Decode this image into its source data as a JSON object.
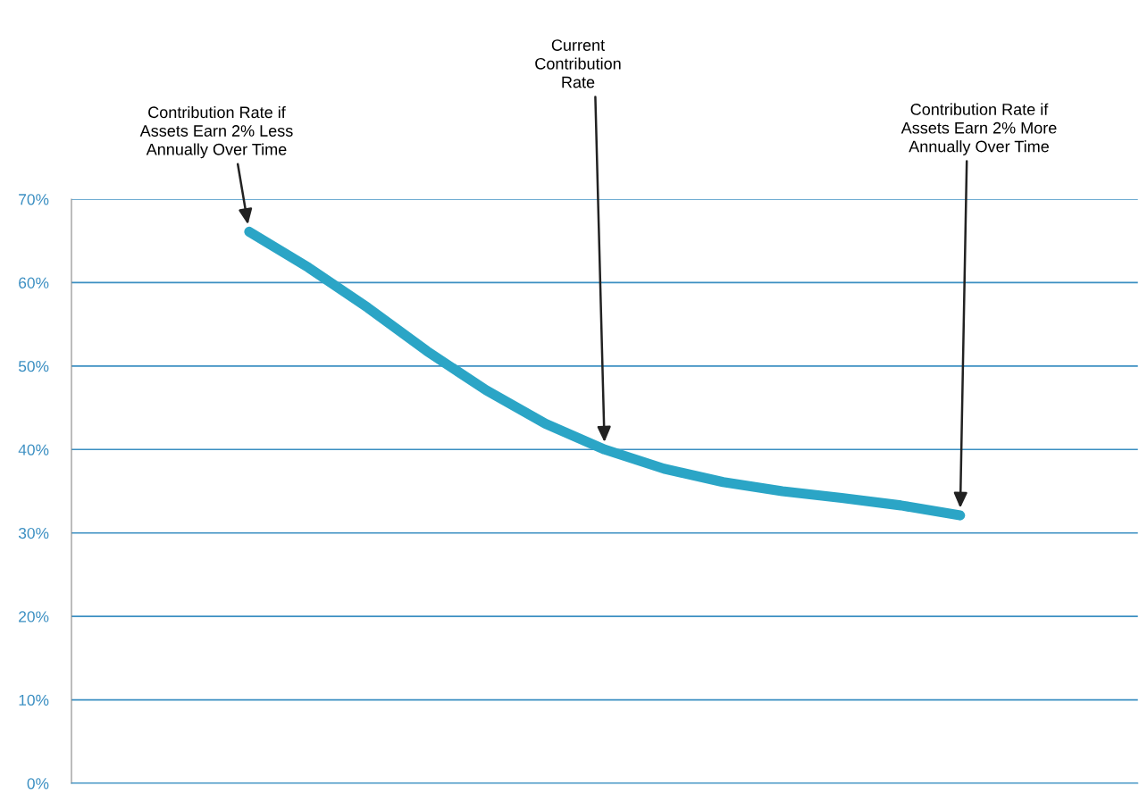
{
  "chart_data": {
    "type": "line",
    "categories": [
      null,
      null,
      null,
      null,
      null,
      null,
      null,
      null,
      null,
      null,
      null,
      null,
      null,
      null,
      null,
      null,
      null,
      null,
      null
    ],
    "series": [
      {
        "color": "#2ba5c6",
        "values": [
          null,
          null,
          null,
          66.1,
          61.8,
          57.0,
          51.8,
          47.1,
          43.1,
          40.0,
          37.7,
          36.1,
          35.0,
          34.2,
          33.3,
          32.1,
          null,
          null,
          null
        ]
      }
    ],
    "ylim": [
      0,
      70
    ],
    "yticks": [
      {
        "value": 0,
        "label": "0%"
      },
      {
        "value": 10,
        "label": "10%"
      },
      {
        "value": 20,
        "label": "20%"
      },
      {
        "value": 30,
        "label": "30%"
      },
      {
        "value": 40,
        "label": "40%"
      },
      {
        "value": 50,
        "label": "50%"
      },
      {
        "value": 60,
        "label": "60%"
      },
      {
        "value": 70,
        "label": "70%"
      }
    ],
    "grid": "y",
    "tick_labels": "y",
    "marker": "none",
    "line_style": "solid",
    "annotations": [
      "Contribution Rate if\nAssets Earn 2% Less\nAnnually Over Time",
      "Current\nContribution\nRate",
      "Contribution Rate if\nAssets Earn 2% More\nAnnually Over Time"
    ]
  }
}
